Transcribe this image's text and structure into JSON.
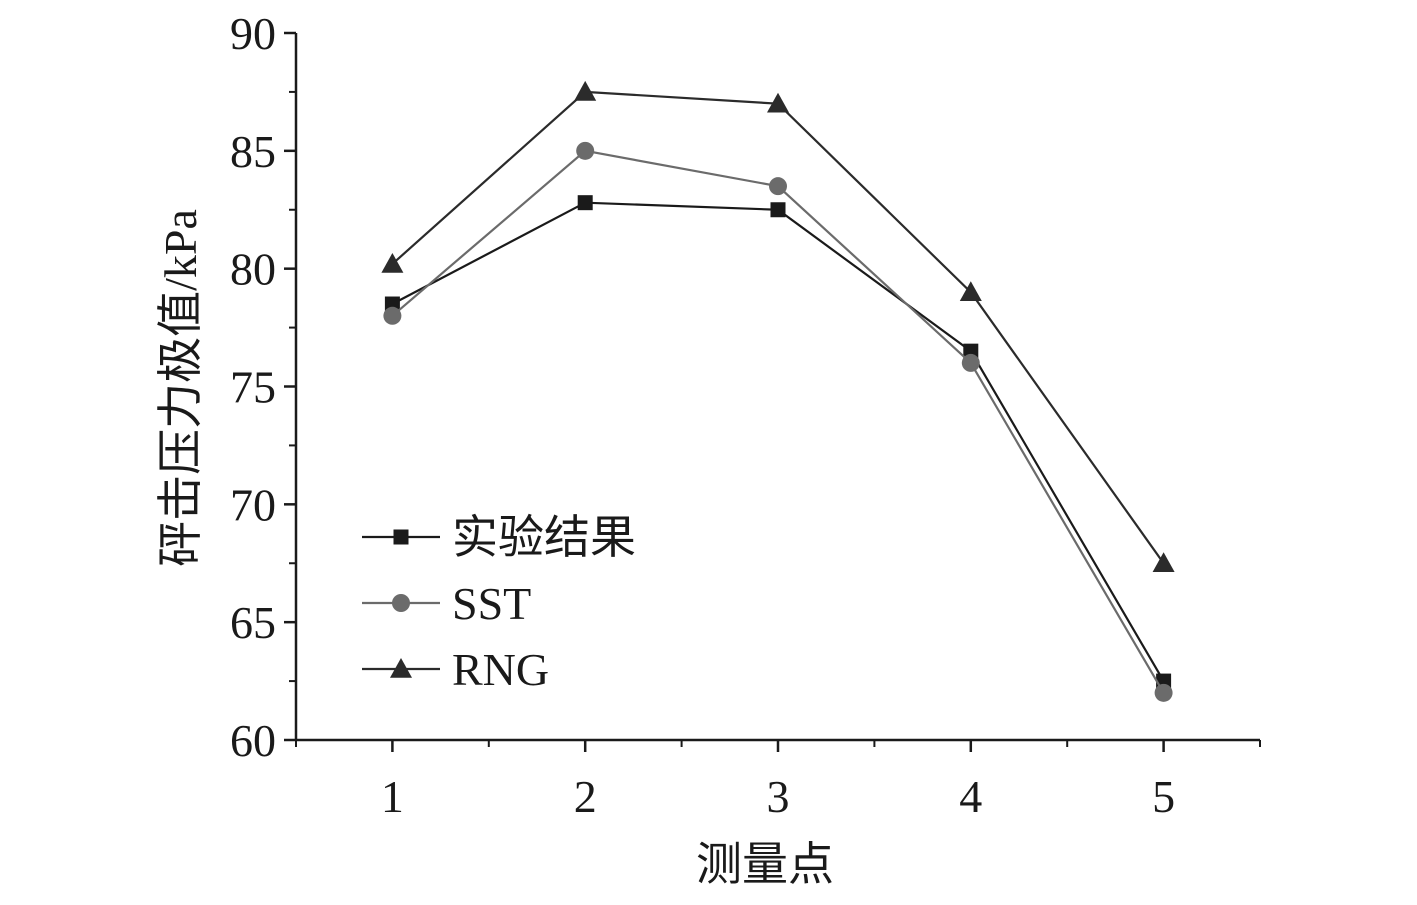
{
  "chart_data": {
    "type": "line",
    "title": "",
    "xlabel": "测量点",
    "ylabel": "砰击压力极值/kPa",
    "categories": [
      "1",
      "2",
      "3",
      "4",
      "5"
    ],
    "x": [
      1,
      2,
      3,
      4,
      5
    ],
    "xlim": [
      0.5,
      5.5
    ],
    "ylim": [
      60,
      90
    ],
    "yticks": [
      60,
      65,
      70,
      75,
      80,
      85,
      90
    ],
    "grid": false,
    "legend_position": "lower-left",
    "series": [
      {
        "name": "实验结果",
        "marker": "square",
        "color": "#1a1a1a",
        "values": [
          78.5,
          82.8,
          82.5,
          76.5,
          62.5
        ]
      },
      {
        "name": "SST",
        "marker": "circle",
        "color": "#6b6b6b",
        "values": [
          78.0,
          85.0,
          83.5,
          76.0,
          62.0
        ]
      },
      {
        "name": "RNG",
        "marker": "triangle",
        "color": "#2b2b2b",
        "values": [
          80.2,
          87.5,
          87.0,
          79.0,
          67.5
        ]
      }
    ]
  }
}
